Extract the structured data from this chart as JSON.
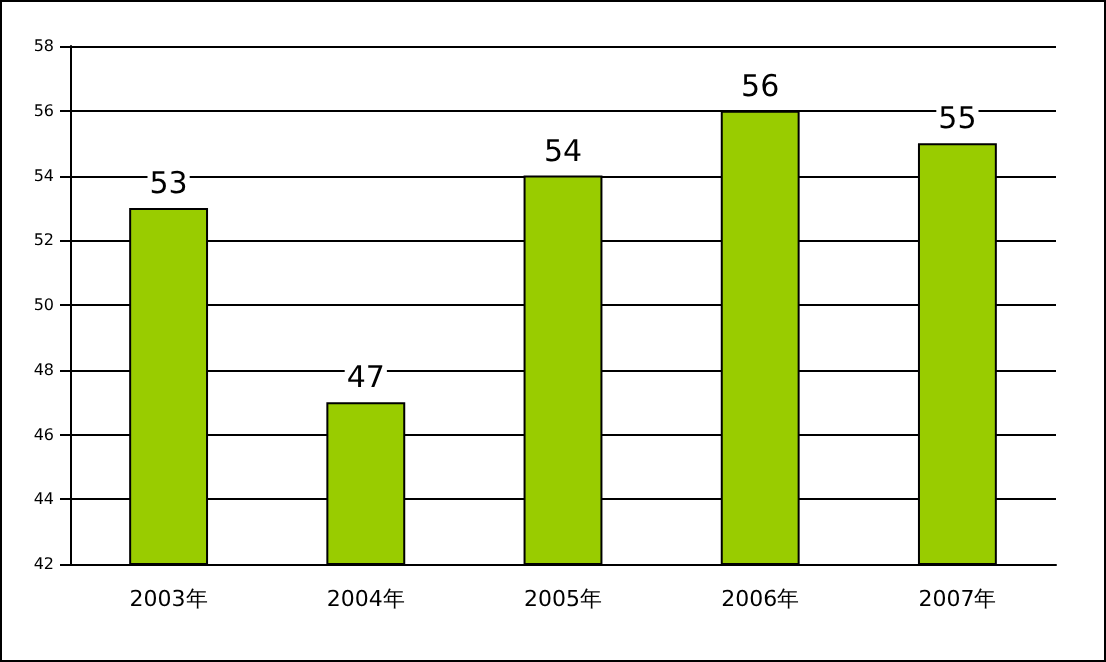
{
  "chart_data": {
    "type": "bar",
    "categories": [
      "2003年",
      "2004年",
      "2005年",
      "2006年",
      "2007年"
    ],
    "values": [
      53,
      47,
      54,
      56,
      55
    ],
    "color": "#99cc00",
    "data_labels": true,
    "ylim": [
      42,
      58
    ],
    "yticks": [
      42,
      44,
      46,
      48,
      50,
      52,
      54,
      56,
      58
    ],
    "grid": "y"
  }
}
